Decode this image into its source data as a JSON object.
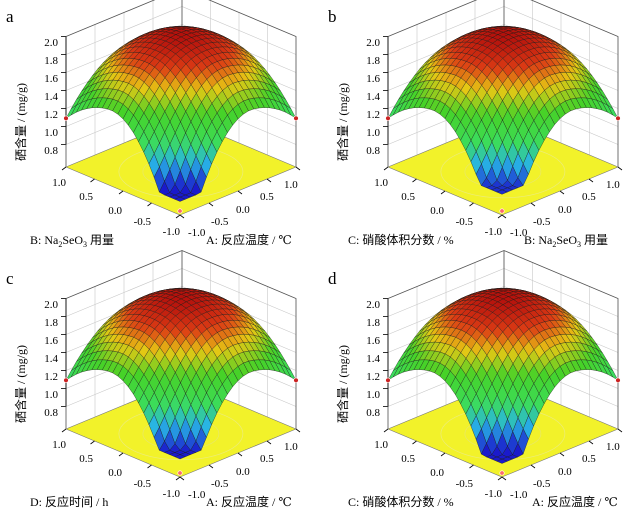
{
  "chart_data": [
    {
      "type": "surface",
      "panel_label": "a",
      "zlabel": "硒含量 / (mg/g)",
      "zticks": [
        "0.8",
        "1.0",
        "1.2",
        "1.4",
        "1.6",
        "1.8",
        "2.0"
      ],
      "xlabel": "A: 反应温度 / ℃",
      "xticks": [
        "-1.0",
        "-0.5",
        "0.0",
        "0.5",
        "1.0"
      ],
      "ylabel_pre": "B: Na",
      "ylabel_sub1": "2",
      "ylabel_mid": "SeO",
      "ylabel_sub2": "3",
      "ylabel_post": " 用量",
      "yticks": [
        "-1.0",
        "-0.5",
        "0.0",
        "0.5",
        "1.0"
      ],
      "xlim": [
        -1,
        1
      ],
      "ylim": [
        -1,
        1
      ],
      "zlim": [
        0.8,
        2.0
      ],
      "peak": 1.95,
      "edge": 1.1,
      "vertex": 0.7,
      "point_color": "#cc2222"
    },
    {
      "type": "surface",
      "panel_label": "b",
      "zlabel": "硒含量 / (mg/g)",
      "zticks": [
        "0.8",
        "1.0",
        "1.2",
        "1.4",
        "1.6",
        "1.8",
        "2.0"
      ],
      "xlabel_pre": "B: Na",
      "xlabel_sub1": "2",
      "xlabel_mid": "SeO",
      "xlabel_sub2": "3",
      "xlabel_post": " 用量",
      "xticks": [
        "-1.0",
        "-0.5",
        "0.0",
        "0.5",
        "1.0"
      ],
      "ylabel": "C: 硝酸体积分数 / %",
      "yticks": [
        "-1.0",
        "-0.5",
        "0.0",
        "0.5",
        "1.0"
      ],
      "xlim": [
        -1,
        1
      ],
      "ylim": [
        -1,
        1
      ],
      "zlim": [
        0.8,
        2.0
      ],
      "peak": 1.95,
      "edge": 1.15,
      "vertex": 0.78,
      "point_color": "#cc2222"
    },
    {
      "type": "surface",
      "panel_label": "c",
      "zlabel": "硒含量 / (mg/g)",
      "zticks": [
        "0.8",
        "1.0",
        "1.2",
        "1.4",
        "1.6",
        "1.8",
        "2.0"
      ],
      "xlabel": "A: 反应温度 / ℃",
      "xticks": [
        "-1.0",
        "-0.5",
        "0.0",
        "0.5",
        "1.0"
      ],
      "ylabel": "D: 反应时间 / h",
      "yticks": [
        "-1.0",
        "-0.5",
        "0.0",
        "0.5",
        "1.0"
      ],
      "xlim": [
        -1,
        1
      ],
      "ylim": [
        -1,
        1
      ],
      "zlim": [
        0.8,
        2.0
      ],
      "peak": 1.95,
      "edge": 1.05,
      "vertex": 0.75,
      "point_color": "#cc2222"
    },
    {
      "type": "surface",
      "panel_label": "d",
      "zlabel": "硒含量 / (mg/g)",
      "zticks": [
        "0.8",
        "1.0",
        "1.2",
        "1.4",
        "1.6",
        "1.8",
        "2.0"
      ],
      "xlabel": "A: 反应温度 / ℃",
      "xticks": [
        "-1.0",
        "-0.5",
        "0.0",
        "0.5",
        "1.0"
      ],
      "ylabel": "C: 硝酸体积分数 / %",
      "yticks": [
        "-1.0",
        "-0.5",
        "0.0",
        "0.5",
        "1.0"
      ],
      "xlim": [
        -1,
        1
      ],
      "ylim": [
        -1,
        1
      ],
      "zlim": [
        0.8,
        2.0
      ],
      "peak": 1.95,
      "edge": 1.05,
      "vertex": 0.7,
      "point_color": "#cc2222"
    }
  ],
  "colors": {
    "floor": "#f2f22a",
    "floor_contour": "#e03a2a",
    "high": "#c41a10",
    "mid": "#2fcc2f",
    "low": "#1a1acc"
  }
}
